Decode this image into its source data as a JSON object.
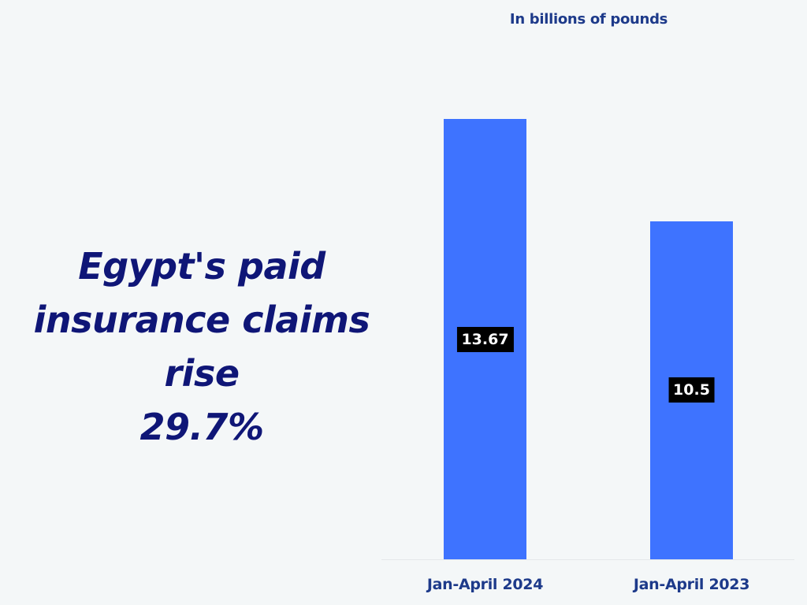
{
  "headline": {
    "lines": [
      "Egypt's paid",
      "insurance claims rise",
      "29.7%"
    ]
  },
  "unit_label": "In billions of pounds",
  "colors": {
    "background": "#f4f7f8",
    "bar": "#3e73ff",
    "headline": "#0f1677",
    "axis_text": "#1d3a8a",
    "value_label_bg": "#000000",
    "value_label_text": "#ffffff"
  },
  "bars": [
    {
      "category": "Jan-April 2024",
      "value": 13.67,
      "value_label": "13.67"
    },
    {
      "category": "Jan-April 2023",
      "value": 10.5,
      "value_label": "10.5"
    }
  ],
  "chart_data": {
    "type": "bar",
    "title": "Egypt's paid insurance claims rise 29.7%",
    "subtitle": "In billions of pounds",
    "categories": [
      "Jan-April 2024",
      "Jan-April 2023"
    ],
    "values": [
      13.67,
      10.5
    ],
    "xlabel": "",
    "ylabel": "In billions of pounds",
    "ylim": [
      0,
      15
    ],
    "grid": false,
    "legend": null,
    "data_labels": [
      "13.67",
      "10.5"
    ],
    "annotations": [
      "29.7%"
    ]
  }
}
